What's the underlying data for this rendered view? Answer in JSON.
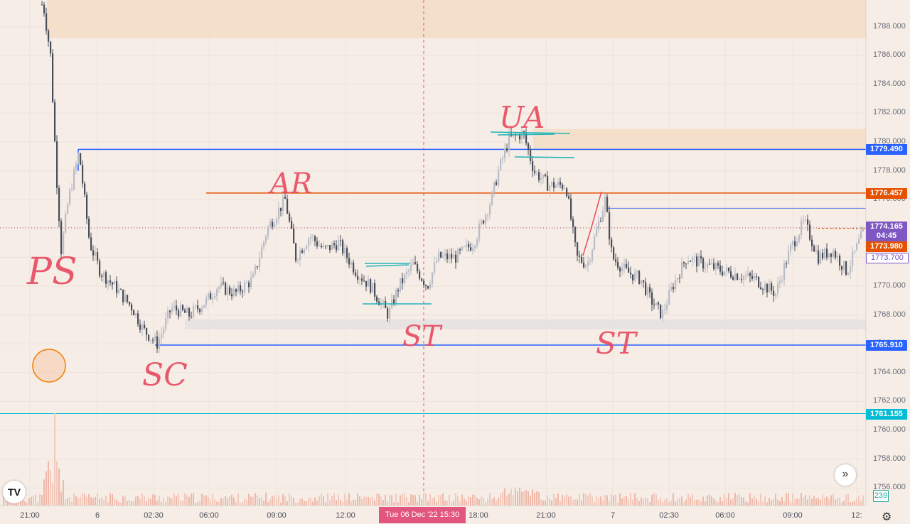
{
  "chart_data": {
    "type": "candlestick",
    "symbol_price_scale": {
      "ticks": [
        "1788.000",
        "1786.000",
        "1784.000",
        "1782.000",
        "1780.000",
        "1778.000",
        "1776.000",
        "1774.000",
        "1772.000",
        "1770.000",
        "1768.000",
        "1766.000",
        "1764.000",
        "1762.000",
        "1760.000",
        "1758.000",
        "1756.000"
      ],
      "ylim": [
        1754,
        1790
      ]
    },
    "time_axis": {
      "labels": [
        "21:00",
        "6",
        "02:30",
        "06:00",
        "09:00",
        "12:00",
        "18:00",
        "21:00",
        "7",
        "02:30",
        "06:00",
        "09:00",
        "12:"
      ],
      "crosshair_time": "Tue 06 Dec '22   15:30"
    },
    "series": [
      {
        "name": "price",
        "approx_path": [
          [
            0,
            1790.5
          ],
          [
            60,
            1789.5
          ],
          [
            70,
            1786
          ],
          [
            78,
            1778
          ],
          [
            85,
            1772.5
          ],
          [
            95,
            1776
          ],
          [
            110,
            1779.3
          ],
          [
            125,
            1773
          ],
          [
            140,
            1771
          ],
          [
            160,
            1770
          ],
          [
            185,
            1768.5
          ],
          [
            200,
            1767
          ],
          [
            220,
            1766
          ],
          [
            240,
            1768.5
          ],
          [
            265,
            1768
          ],
          [
            290,
            1769
          ],
          [
            305,
            1770
          ],
          [
            330,
            1769.5
          ],
          [
            355,
            1770.5
          ],
          [
            375,
            1774
          ],
          [
            400,
            1776
          ],
          [
            415,
            1772
          ],
          [
            435,
            1773.5
          ],
          [
            455,
            1772.5
          ],
          [
            475,
            1773
          ],
          [
            500,
            1771
          ],
          [
            520,
            1770
          ],
          [
            545,
            1768
          ],
          [
            560,
            1770
          ],
          [
            580,
            1771.5
          ],
          [
            600,
            1770
          ],
          [
            615,
            1772
          ],
          [
            640,
            1772
          ],
          [
            665,
            1773
          ],
          [
            690,
            1776
          ],
          [
            700,
            1778
          ],
          [
            715,
            1780.2
          ],
          [
            735,
            1780.6
          ],
          [
            750,
            1778
          ],
          [
            770,
            1777
          ],
          [
            795,
            1777
          ],
          [
            810,
            1772
          ],
          [
            825,
            1771.5
          ],
          [
            850,
            1776
          ],
          [
            860,
            1772
          ],
          [
            880,
            1771
          ],
          [
            900,
            1770.5
          ],
          [
            915,
            1769
          ],
          [
            930,
            1768
          ],
          [
            945,
            1770
          ],
          [
            965,
            1772
          ],
          [
            990,
            1771.5
          ],
          [
            1020,
            1771
          ],
          [
            1060,
            1770.5
          ],
          [
            1090,
            1769.5
          ],
          [
            1110,
            1772.5
          ],
          [
            1130,
            1774.5
          ],
          [
            1150,
            1772
          ],
          [
            1170,
            1772.5
          ],
          [
            1190,
            1771
          ],
          [
            1215,
            1774
          ]
        ]
      }
    ],
    "price_tags": [
      {
        "label": "1779.490",
        "price": 1779.49,
        "color": "#2962ff"
      },
      {
        "label": "1776.457",
        "price": 1776.457,
        "color": "#e65100"
      },
      {
        "label": "1774.165",
        "price": 1774.165,
        "color": "#7e57c2"
      },
      {
        "label": "04:45",
        "price": 1773.5,
        "color": "#7e57c2"
      },
      {
        "label": "1773.980",
        "price": 1773.98,
        "color": "#e65100"
      },
      {
        "label": "1773.700",
        "price": 1773.7,
        "color": "#ffffff"
      },
      {
        "label": "1765.910",
        "price": 1765.91,
        "color": "#2962ff"
      },
      {
        "label": "1761.155",
        "price": 1761.155,
        "color": "#00bcd4"
      }
    ],
    "volume_tag": "239",
    "annotations": [
      "PS",
      "SC",
      "AR",
      "ST",
      "UA",
      "ST"
    ],
    "zones": [
      {
        "from": 1787.2,
        "to": 1790.5,
        "color": "#f3dcc6"
      },
      {
        "from": 1779.4,
        "to": 1780.9,
        "color": "#f3dcc6"
      },
      {
        "from": 1767,
        "to": 1767.7,
        "color": "#e4e1e0"
      }
    ],
    "grid": true
  },
  "ui": {
    "logo_text": "TV",
    "goto_icon": "»",
    "settings_icon": "gear-icon"
  }
}
